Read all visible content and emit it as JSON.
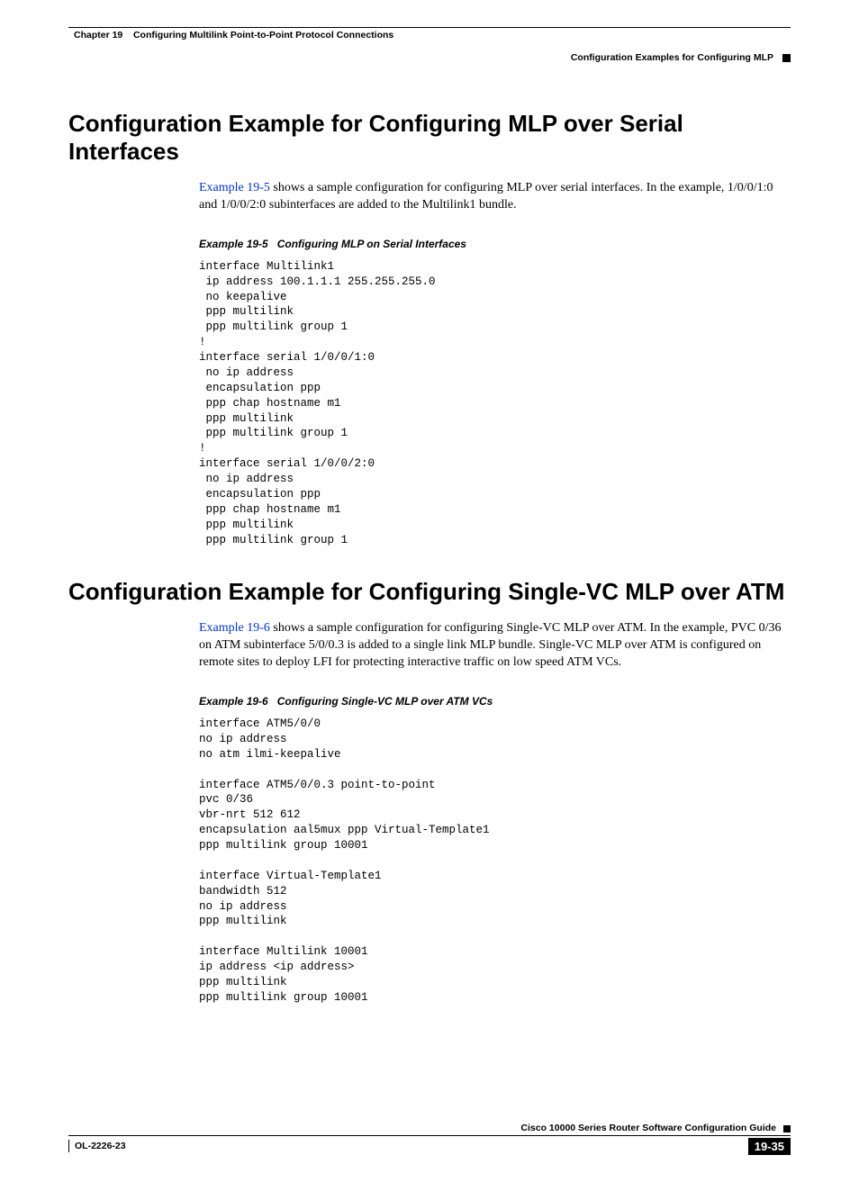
{
  "header": {
    "chapter_label": "Chapter 19",
    "chapter_title": "Configuring Multilink Point-to-Point Protocol Connections",
    "section_title": "Configuration Examples for Configuring MLP"
  },
  "section1": {
    "heading": "Configuration Example for Configuring MLP over Serial Interfaces",
    "intro_link": "Example 19-5",
    "intro_rest": " shows a sample configuration for configuring MLP over serial interfaces. In the example, 1/0/0/1:0 and 1/0/0/2:0 subinterfaces are added to the Multilink1 bundle.",
    "example_label": "Example 19-5",
    "example_title": "Configuring MLP on Serial Interfaces",
    "code": "interface Multilink1\n ip address 100.1.1.1 255.255.255.0\n no keepalive\n ppp multilink\n ppp multilink group 1\n!\ninterface serial 1/0/0/1:0\n no ip address\n encapsulation ppp\n ppp chap hostname m1\n ppp multilink\n ppp multilink group 1\n!\ninterface serial 1/0/0/2:0\n no ip address\n encapsulation ppp\n ppp chap hostname m1\n ppp multilink\n ppp multilink group 1"
  },
  "section2": {
    "heading": "Configuration Example for Configuring Single-VC MLP over ATM",
    "intro_link": "Example 19-6",
    "intro_rest": " shows a sample configuration for configuring Single-VC MLP over ATM. In the example, PVC 0/36 on ATM subinterface 5/0/0.3 is added to a single link MLP bundle. Single-VC MLP over ATM is configured on remote sites to deploy LFI for protecting interactive traffic on low speed ATM VCs.",
    "example_label": "Example 19-6",
    "example_title": "Configuring Single-VC MLP over ATM VCs",
    "code": "interface ATM5/0/0\nno ip address\nno atm ilmi-keepalive\n\ninterface ATM5/0/0.3 point-to-point\npvc 0/36\nvbr-nrt 512 612\nencapsulation aal5mux ppp Virtual-Template1\nppp multilink group 10001\n\ninterface Virtual-Template1\nbandwidth 512\nno ip address\nppp multilink\n\ninterface Multilink 10001\nip address <ip address>\nppp multilink\nppp multilink group 10001"
  },
  "footer": {
    "guide_title": "Cisco 10000 Series Router Software Configuration Guide",
    "doc_id": "OL-2226-23",
    "page_number": "19-35"
  }
}
